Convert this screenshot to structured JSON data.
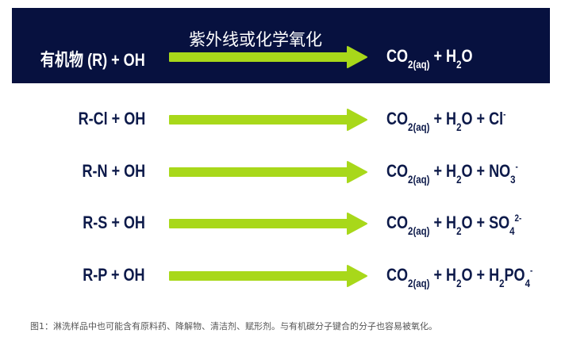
{
  "colors": {
    "banner": "#07113f",
    "arrow": "#a8d81a",
    "text": "#0d1a4a"
  },
  "header": {
    "condition": "紫外线或化学氧化",
    "reactant": "有机物 (R) + OH",
    "product": {
      "co2": "CO",
      "co2_sub": "2(aq)",
      "plus1": "+ H",
      "h2o_sub": "2",
      "o": "O"
    }
  },
  "rows": [
    {
      "reactant": "R-Cl + OH",
      "co": "CO",
      "co_sub": "2(aq)",
      "h": "+ H",
      "h_sub": "2",
      "o": "O + ",
      "ion": "Cl",
      "ion_sub": "",
      "ion_sup": "-"
    },
    {
      "reactant": "R-N + OH",
      "co": "CO",
      "co_sub": "2(aq)",
      "h": "+ H",
      "h_sub": "2",
      "o": "O + ",
      "ion": "NO",
      "ion_sub": "3",
      "ion_sup": "-"
    },
    {
      "reactant": "R-S + OH",
      "co": "CO",
      "co_sub": "2(aq)",
      "h": "+ H",
      "h_sub": "2",
      "o": "O + ",
      "ion": "SO",
      "ion_sub": "4",
      "ion_sup": "2-"
    },
    {
      "reactant": "R-P + OH",
      "co": "CO",
      "co_sub": "2(aq)",
      "h": "+ H",
      "h_sub": "2",
      "o": "O + ",
      "ion_pre": "H",
      "ion_pre_sub": "2",
      "ion": "PO",
      "ion_sub": "4",
      "ion_sup": "-"
    }
  ],
  "caption": "图1：淋洗样品中也可能含有原料药、降解物、清洁剂、赋形剂。与有机碳分子键合的分子也容易被氧化。"
}
